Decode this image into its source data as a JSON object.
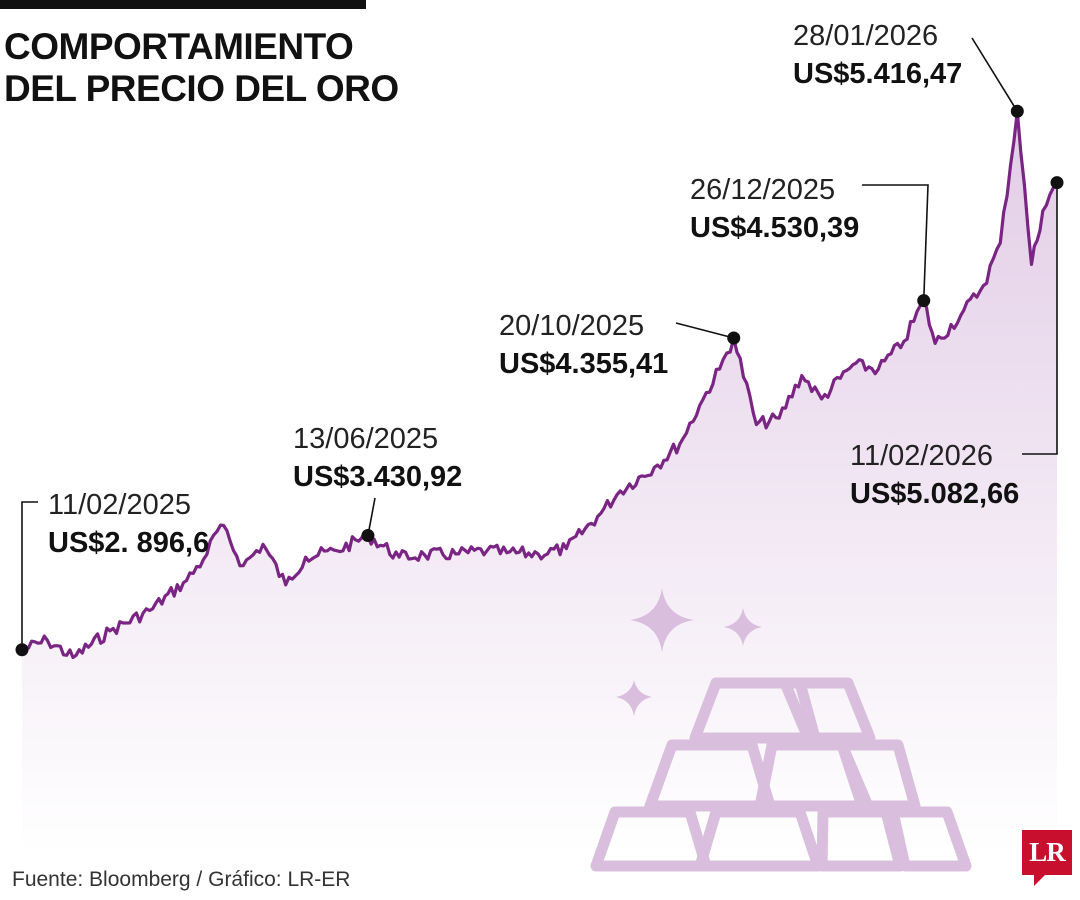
{
  "title": {
    "line1": "COMPORTAMIENTO",
    "line2": "DEL PRECIO DEL ORO"
  },
  "source": "Fuente: Bloomberg / Gráfico: LR-ER",
  "logo": "LR",
  "colors": {
    "line": "#7a2583",
    "area_top": "#e2cce6",
    "area_bottom": "#ffffff",
    "bars": "#d9bfdd",
    "accent": "#c8102e"
  },
  "icons": [
    "gold-bars-icon",
    "sparkle-icon"
  ],
  "chart_data": {
    "type": "area",
    "title": "COMPORTAMIENTO DEL PRECIO DEL ORO",
    "xlabel": "",
    "ylabel": "",
    "unit": "US$",
    "ylim": [
      1950,
      5750
    ],
    "xlim": [
      "2025-02-11",
      "2026-02-11"
    ],
    "grid": false,
    "series": [
      {
        "values": [
          [
            "2025-02-11",
            2896.6
          ],
          [
            "2025-02-20",
            2940
          ],
          [
            "2025-03-01",
            2860
          ],
          [
            "2025-03-14",
            2985
          ],
          [
            "2025-03-28",
            3080
          ],
          [
            "2025-04-10",
            3220
          ],
          [
            "2025-04-16",
            3320
          ],
          [
            "2025-04-22",
            3480
          ],
          [
            "2025-04-30",
            3290
          ],
          [
            "2025-05-07",
            3390
          ],
          [
            "2025-05-15",
            3200
          ],
          [
            "2025-05-22",
            3330
          ],
          [
            "2025-06-02",
            3360
          ],
          [
            "2025-06-13",
            3430.92
          ],
          [
            "2025-06-24",
            3330
          ],
          [
            "2025-07-03",
            3340
          ],
          [
            "2025-07-15",
            3345
          ],
          [
            "2025-07-25",
            3360
          ],
          [
            "2025-08-01",
            3350
          ],
          [
            "2025-08-12",
            3345
          ],
          [
            "2025-08-22",
            3370
          ],
          [
            "2025-09-02",
            3520
          ],
          [
            "2025-09-10",
            3640
          ],
          [
            "2025-09-22",
            3750
          ],
          [
            "2025-10-01",
            3860
          ],
          [
            "2025-10-08",
            4040
          ],
          [
            "2025-10-15",
            4210
          ],
          [
            "2025-10-20",
            4355.41
          ],
          [
            "2025-10-28",
            3950
          ],
          [
            "2025-11-05",
            3980
          ],
          [
            "2025-11-13",
            4180
          ],
          [
            "2025-11-20",
            4070
          ],
          [
            "2025-12-01",
            4230
          ],
          [
            "2025-12-10",
            4210
          ],
          [
            "2025-12-19",
            4340
          ],
          [
            "2025-12-26",
            4530.39
          ],
          [
            "2025-12-30",
            4330
          ],
          [
            "2026-01-08",
            4460
          ],
          [
            "2026-01-16",
            4600
          ],
          [
            "2026-01-22",
            4800
          ],
          [
            "2026-01-28",
            5416.47
          ],
          [
            "2026-02-02",
            4700
          ],
          [
            "2026-02-06",
            4950
          ],
          [
            "2026-02-11",
            5082.66
          ]
        ]
      }
    ],
    "annotations": [
      {
        "date": "11/02/2025",
        "value": "US$2. 896,6",
        "x": "2025-02-11",
        "y": 2896.6
      },
      {
        "date": "13/06/2025",
        "value": "US$3.430,92",
        "x": "2025-06-13",
        "y": 3430.92
      },
      {
        "date": "20/10/2025",
        "value": "US$4.355,41",
        "x": "2025-10-20",
        "y": 4355.41
      },
      {
        "date": "26/12/2025",
        "value": "US$4.530,39",
        "x": "2025-12-26",
        "y": 4530.39
      },
      {
        "date": "28/01/2026",
        "value": "US$5.416,47",
        "x": "2026-01-28",
        "y": 5416.47
      },
      {
        "date": "11/02/2026",
        "value": "US$5.082,66",
        "x": "2026-02-11",
        "y": 5082.66
      }
    ]
  }
}
